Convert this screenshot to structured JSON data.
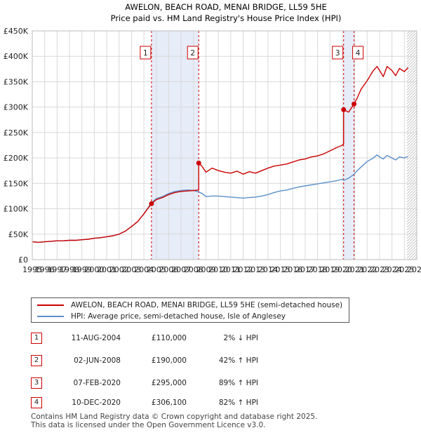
{
  "colors": {
    "price_paid": "#cc0000",
    "hpi": "#5b8fc9",
    "shade": "#e6ecf8",
    "grid": "#d9d9d9",
    "marker_border": "#cc0000"
  },
  "chart_data": {
    "type": "line",
    "title": "AWELON, BEACH ROAD, MENAI BRIDGE, LL59 5HE",
    "subtitle": "Price paid vs. HM Land Registry's House Price Index (HPI)",
    "xlabel": "",
    "ylabel": "",
    "xlim": [
      1995,
      2026
    ],
    "ylim": [
      0,
      450000
    ],
    "y_ticks": [
      0,
      50000,
      100000,
      150000,
      200000,
      250000,
      300000,
      350000,
      400000,
      450000
    ],
    "y_tick_labels": [
      "£0",
      "£50K",
      "£100K",
      "£150K",
      "£200K",
      "£250K",
      "£300K",
      "£350K",
      "£400K",
      "£450K"
    ],
    "x_ticks": [
      1995,
      1996,
      1997,
      1998,
      1999,
      2000,
      2001,
      2002,
      2003,
      2004,
      2005,
      2006,
      2007,
      2008,
      2009,
      2010,
      2011,
      2012,
      2013,
      2014,
      2015,
      2016,
      2017,
      2018,
      2019,
      2020,
      2021,
      2022,
      2023,
      2024,
      2025,
      2026
    ],
    "x_tick_labels": [
      "1995",
      "1996",
      "1997",
      "1998",
      "1999",
      "2000",
      "2001",
      "2002",
      "2003",
      "2004",
      "2005",
      "2006",
      "2007",
      "2008",
      "2009",
      "2010",
      "2011",
      "2012",
      "2013",
      "2014",
      "2015",
      "2016",
      "2017",
      "2018",
      "2019",
      "2020",
      "2021",
      "2022",
      "2023",
      "2024",
      "2025",
      "2026"
    ],
    "grid": true,
    "shaded_ranges": [
      [
        2004.61,
        2008.42
      ],
      [
        2020.1,
        2020.94
      ]
    ],
    "hatched_from": 2025.2,
    "series": [
      {
        "name": "AWELON, BEACH ROAD, MENAI BRIDGE, LL59 5HE (semi-detached house)",
        "color": "#cc0000",
        "x": [
          1995.0,
          1995.5,
          1996.0,
          1996.5,
          1997.0,
          1997.5,
          1998.0,
          1998.5,
          1999.0,
          1999.5,
          2000.0,
          2000.5,
          2001.0,
          2001.5,
          2002.0,
          2002.5,
          2003.0,
          2003.5,
          2004.0,
          2004.61,
          2005.0,
          2005.5,
          2006.0,
          2006.5,
          2007.0,
          2007.5,
          2008.0,
          2008.42,
          2008.42,
          2008.7,
          2009.0,
          2009.5,
          2010.0,
          2010.5,
          2011.0,
          2011.5,
          2012.0,
          2012.5,
          2013.0,
          2013.5,
          2014.0,
          2014.5,
          2015.0,
          2015.5,
          2016.0,
          2016.5,
          2017.0,
          2017.5,
          2018.0,
          2018.5,
          2019.0,
          2019.5,
          2020.0,
          2020.1,
          2020.1,
          2020.5,
          2020.94,
          2021.2,
          2021.5,
          2022.0,
          2022.5,
          2022.8,
          2023.0,
          2023.3,
          2023.6,
          2024.0,
          2024.3,
          2024.6,
          2025.0,
          2025.3
        ],
        "values": [
          35000,
          34000,
          35000,
          36000,
          37000,
          37000,
          38000,
          38000,
          39000,
          40000,
          42000,
          43000,
          45000,
          47000,
          50000,
          56000,
          65000,
          75000,
          90000,
          110000,
          118000,
          122000,
          128000,
          132000,
          134000,
          135000,
          136000,
          137000,
          190000,
          183000,
          172000,
          180000,
          175000,
          172000,
          170000,
          174000,
          168000,
          173000,
          170000,
          175000,
          180000,
          184000,
          186000,
          188000,
          192000,
          196000,
          198000,
          202000,
          204000,
          208000,
          214000,
          220000,
          225000,
          228000,
          295000,
          290000,
          306100,
          318000,
          335000,
          352000,
          372000,
          380000,
          372000,
          360000,
          380000,
          372000,
          362000,
          376000,
          370000,
          378000
        ]
      },
      {
        "name": "HPI: Average price, semi-detached house, Isle of Anglesey",
        "color": "#5b8fc9",
        "x": [
          1995.0,
          1995.5,
          1996.0,
          1996.5,
          1997.0,
          1997.5,
          1998.0,
          1998.5,
          1999.0,
          1999.5,
          2000.0,
          2000.5,
          2001.0,
          2001.5,
          2002.0,
          2002.5,
          2003.0,
          2003.5,
          2004.0,
          2004.61,
          2005.0,
          2005.5,
          2006.0,
          2006.5,
          2007.0,
          2007.5,
          2008.0,
          2008.42,
          2008.7,
          2009.0,
          2009.5,
          2010.0,
          2010.5,
          2011.0,
          2011.5,
          2012.0,
          2012.5,
          2013.0,
          2013.5,
          2014.0,
          2014.5,
          2015.0,
          2015.5,
          2016.0,
          2016.5,
          2017.0,
          2017.5,
          2018.0,
          2018.5,
          2019.0,
          2019.5,
          2020.0,
          2020.1,
          2020.5,
          2020.94,
          2021.2,
          2021.5,
          2022.0,
          2022.5,
          2022.8,
          2023.0,
          2023.3,
          2023.6,
          2024.0,
          2024.3,
          2024.6,
          2025.0,
          2025.3
        ],
        "values": [
          35000,
          34000,
          35000,
          36000,
          37000,
          37000,
          38000,
          38000,
          39000,
          40000,
          42000,
          43000,
          45000,
          47000,
          50000,
          56000,
          65000,
          75000,
          90000,
          112000,
          120000,
          124000,
          130000,
          134000,
          136000,
          137000,
          136000,
          133000,
          130000,
          124000,
          125000,
          125000,
          124000,
          123000,
          122000,
          121000,
          122000,
          123000,
          125000,
          128000,
          132000,
          135000,
          137000,
          140000,
          143000,
          145000,
          147000,
          149000,
          151000,
          153000,
          155000,
          158000,
          156000,
          160000,
          168000,
          175000,
          182000,
          193000,
          200000,
          206000,
          202000,
          198000,
          205000,
          200000,
          196000,
          202000,
          200000,
          203000
        ]
      }
    ],
    "annotations": [
      {
        "label": "1",
        "x": 2004.61,
        "value": 110000
      },
      {
        "label": "2",
        "x": 2008.42,
        "value": 190000
      },
      {
        "label": "3",
        "x": 2020.1,
        "value": 295000
      },
      {
        "label": "4",
        "x": 2020.94,
        "value": 306100
      }
    ]
  },
  "legend": {
    "price_paid_label": "AWELON, BEACH ROAD, MENAI BRIDGE, LL59 5HE (semi-detached house)",
    "hpi_label": "HPI: Average price, semi-detached house, Isle of Anglesey"
  },
  "transactions": [
    {
      "num": "1",
      "date": "11-AUG-2004",
      "price": "£110,000",
      "hpi": "2% ↓ HPI"
    },
    {
      "num": "2",
      "date": "02-JUN-2008",
      "price": "£190,000",
      "hpi": "42% ↑ HPI"
    },
    {
      "num": "3",
      "date": "07-FEB-2020",
      "price": "£295,000",
      "hpi": "89% ↑ HPI"
    },
    {
      "num": "4",
      "date": "10-DEC-2020",
      "price": "£306,100",
      "hpi": "82% ↑ HPI"
    }
  ],
  "footer": {
    "line1": "Contains HM Land Registry data © Crown copyright and database right 2025.",
    "line2": "This data is licensed under the Open Government Licence v3.0."
  }
}
